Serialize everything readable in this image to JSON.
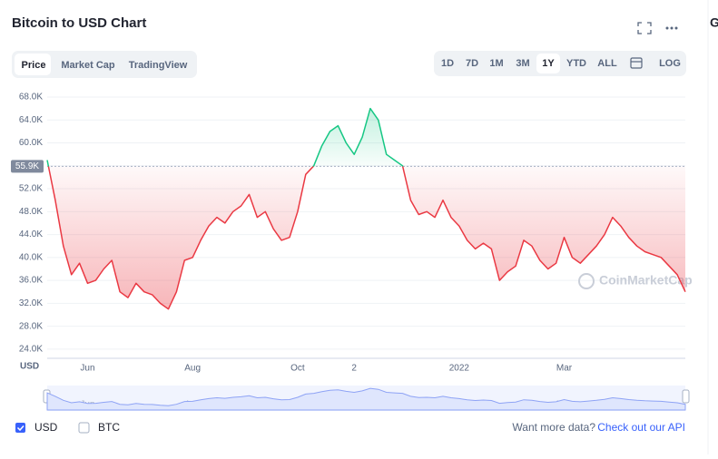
{
  "chart_data": {
    "type": "line",
    "title": "Bitcoin to USD Chart",
    "y_unit_label": "USD",
    "categories": [
      null,
      null,
      null,
      null,
      null,
      "Jun",
      null,
      null,
      null,
      null,
      null,
      null,
      null,
      null,
      null,
      null,
      null,
      null,
      "Aug",
      null,
      null,
      null,
      null,
      null,
      null,
      null,
      null,
      null,
      null,
      null,
      null,
      "Oct",
      null,
      null,
      null,
      null,
      null,
      null,
      "2",
      null,
      null,
      null,
      null,
      null,
      null,
      null,
      null,
      null,
      null,
      null,
      null,
      "2022",
      null,
      null,
      null,
      null,
      null,
      null,
      null,
      null,
      null,
      null,
      null,
      null,
      "Mar",
      null,
      null,
      null,
      null,
      null,
      null,
      null,
      null,
      null,
      null,
      null,
      null,
      null,
      null,
      null
    ],
    "series": [
      {
        "name": "USD",
        "up_color": "#16c784",
        "down_color": "#ea3943",
        "values": [
          57000,
          50000,
          42000,
          37000,
          39000,
          35500,
          36000,
          38000,
          39500,
          34000,
          33000,
          35500,
          34000,
          33500,
          32000,
          31000,
          34000,
          39500,
          40000,
          43000,
          45500,
          47000,
          46000,
          48000,
          49000,
          51000,
          47000,
          48000,
          45000,
          43000,
          43500,
          48000,
          54500,
          56000,
          59500,
          62000,
          63000,
          60000,
          58000,
          61000,
          66000,
          64000,
          58000,
          57000,
          56000,
          50000,
          47500,
          48000,
          47000,
          50000,
          47000,
          45500,
          43000,
          41500,
          42500,
          41500,
          36000,
          37500,
          38500,
          43000,
          42000,
          39500,
          38000,
          39000,
          43500,
          40000,
          39000,
          40500,
          42000,
          44000,
          47000,
          45500,
          43500,
          42000,
          41000,
          40500,
          40000,
          38500,
          37000,
          34000
        ]
      }
    ],
    "reference": {
      "value": 55900,
      "label": "55.9K"
    },
    "ylim": [
      22400,
      69900
    ],
    "yticks": [
      {
        "value": 24000,
        "label": "24.0K"
      },
      {
        "value": 28000,
        "label": "28.0K"
      },
      {
        "value": 32000,
        "label": "32.0K"
      },
      {
        "value": 36000,
        "label": "36.0K"
      },
      {
        "value": 40000,
        "label": "40.0K"
      },
      {
        "value": 44000,
        "label": "44.0K"
      },
      {
        "value": 48000,
        "label": "48.0K"
      },
      {
        "value": 52000,
        "label": "52.0K"
      },
      {
        "value": 56000,
        "label": "56.0K"
      },
      {
        "value": 60000,
        "label": "60.0K"
      },
      {
        "value": 64000,
        "label": "64.0K"
      },
      {
        "value": 68000,
        "label": "68.0K"
      }
    ],
    "grid": true,
    "watermark": "CoinMarketCap"
  },
  "ui": {
    "tabs": [
      "Price",
      "Market Cap",
      "TradingView"
    ],
    "ranges": [
      "1D",
      "7D",
      "1M",
      "3M",
      "1Y",
      "YTD",
      "ALL"
    ],
    "log_button": "LOG",
    "other_toggle": "BTC",
    "more_data": "Want more data?",
    "api_link": "Check out our API",
    "side_letter": "G"
  }
}
